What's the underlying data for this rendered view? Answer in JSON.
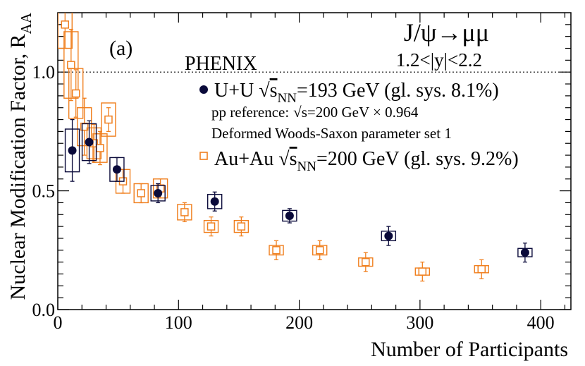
{
  "chart_data": {
    "type": "scatter",
    "title": "J/ψ→μμ",
    "xlabel": "Number of Participants",
    "ylabel": "Nuclear Modification Factor, R",
    "ylabel_sub": "AA",
    "xlim": [
      0,
      425
    ],
    "ylim": [
      0,
      1.25
    ],
    "x_ticks": [
      "0",
      "100",
      "200",
      "300",
      "400"
    ],
    "y_ticks": [
      "0.0",
      "0.5",
      "1.0"
    ],
    "reference_line": 1.0,
    "annotations": {
      "panel": "(a)",
      "experiment": "PHENIX",
      "title": "J/ψ→μμ",
      "rapidity": "1.2<|y|<2.2",
      "uu_label_prefix": "U+U",
      "uu_label_suffix": "=193 GeV (gl. sys. 8.1%)",
      "pp_ref_prefix": "pp reference:",
      "pp_ref_suffix": "s=200 GeV × 0.964",
      "woods_saxon": "Deformed Woods-Saxon parameter set 1",
      "auau_label_prefix": "Au+Au",
      "auau_label_suffix": "=200 GeV (gl. sys. 9.2%)",
      "sqrt_s": "s",
      "sqrt_s_sub": "NN"
    },
    "series": [
      {
        "name": "U+U √sNN=193 GeV",
        "marker": "filled-circle",
        "color": "#0a0a3a",
        "points": [
          {
            "x": 12,
            "y": 0.67,
            "stat": 0.13,
            "sys": 0.18
          },
          {
            "x": 26,
            "y": 0.705,
            "stat": 0.09,
            "sys": 0.155
          },
          {
            "x": 49,
            "y": 0.59,
            "stat": 0.05,
            "sys": 0.1
          },
          {
            "x": 83,
            "y": 0.49,
            "stat": 0.04,
            "sys": 0.065
          },
          {
            "x": 130,
            "y": 0.455,
            "stat": 0.04,
            "sys": 0.06
          },
          {
            "x": 192,
            "y": 0.395,
            "stat": 0.03,
            "sys": 0.045
          },
          {
            "x": 274,
            "y": 0.31,
            "stat": 0.04,
            "sys": 0.04
          },
          {
            "x": 387,
            "y": 0.24,
            "stat": 0.04,
            "sys": 0.035
          }
        ]
      },
      {
        "name": "Au+Au √sNN=200 GeV",
        "marker": "open-square",
        "color": "#f07f1e",
        "points": [
          {
            "x": 6,
            "y": 1.2,
            "stat": 0.1,
            "sys": 0.2
          },
          {
            "x": 11,
            "y": 1.03,
            "stat": 0.15,
            "sys": 0.28
          },
          {
            "x": 15,
            "y": 0.91,
            "stat": 0.1,
            "sys": 0.21
          },
          {
            "x": 22,
            "y": 0.77,
            "stat": 0.12,
            "sys": 0.16
          },
          {
            "x": 30,
            "y": 0.7,
            "stat": 0.08,
            "sys": 0.13
          },
          {
            "x": 35,
            "y": 0.68,
            "stat": 0.07,
            "sys": 0.12
          },
          {
            "x": 42,
            "y": 0.8,
            "stat": 0.05,
            "sys": 0.14
          },
          {
            "x": 54,
            "y": 0.54,
            "stat": 0.05,
            "sys": 0.1
          },
          {
            "x": 69,
            "y": 0.49,
            "stat": 0.04,
            "sys": 0.08
          },
          {
            "x": 85,
            "y": 0.51,
            "stat": 0.04,
            "sys": 0.08
          },
          {
            "x": 105,
            "y": 0.41,
            "stat": 0.04,
            "sys": 0.065
          },
          {
            "x": 127,
            "y": 0.35,
            "stat": 0.04,
            "sys": 0.05
          },
          {
            "x": 152,
            "y": 0.35,
            "stat": 0.04,
            "sys": 0.05
          },
          {
            "x": 181,
            "y": 0.25,
            "stat": 0.04,
            "sys": 0.04
          },
          {
            "x": 217,
            "y": 0.25,
            "stat": 0.04,
            "sys": 0.04
          },
          {
            "x": 255,
            "y": 0.2,
            "stat": 0.04,
            "sys": 0.035
          },
          {
            "x": 302,
            "y": 0.16,
            "stat": 0.04,
            "sys": 0.03
          },
          {
            "x": 351,
            "y": 0.17,
            "stat": 0.04,
            "sys": 0.03
          }
        ]
      }
    ]
  }
}
